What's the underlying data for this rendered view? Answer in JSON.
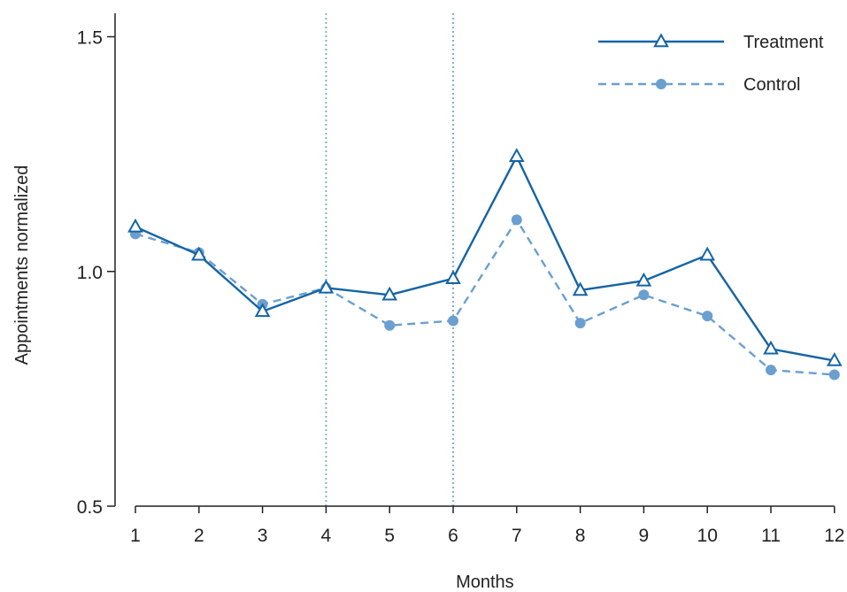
{
  "chart_data": {
    "type": "line",
    "xlabel": "Months",
    "ylabel": "Appointments normalized",
    "x": [
      1,
      2,
      3,
      4,
      5,
      6,
      7,
      8,
      9,
      10,
      11,
      12
    ],
    "x_tick_labels": [
      "1",
      "2",
      "3",
      "4",
      "5",
      "6",
      "7",
      "8",
      "9",
      "10",
      "11",
      "12"
    ],
    "ylim": [
      0.5,
      1.55
    ],
    "xlim": [
      0.8,
      12.0
    ],
    "y_ticks": [
      0.5,
      1.0,
      1.5
    ],
    "y_tick_labels": [
      "0.5",
      "1.0",
      "1.5"
    ],
    "vertical_reference_lines": [
      4,
      6
    ],
    "grid": false,
    "legend_position": "top-right",
    "series": [
      {
        "name": "Treatment",
        "marker": "triangle-open",
        "line_style": "solid",
        "color": "#1464a5",
        "values": [
          1.095,
          1.035,
          0.915,
          0.965,
          0.95,
          0.985,
          1.245,
          0.96,
          0.98,
          1.035,
          0.835,
          0.81
        ]
      },
      {
        "name": "Control",
        "marker": "circle-filled",
        "line_style": "dashed",
        "color": "#6a9fd0",
        "values": [
          1.08,
          1.04,
          0.93,
          0.965,
          0.885,
          0.895,
          1.11,
          0.89,
          0.95,
          0.905,
          0.79,
          0.78
        ]
      }
    ]
  }
}
